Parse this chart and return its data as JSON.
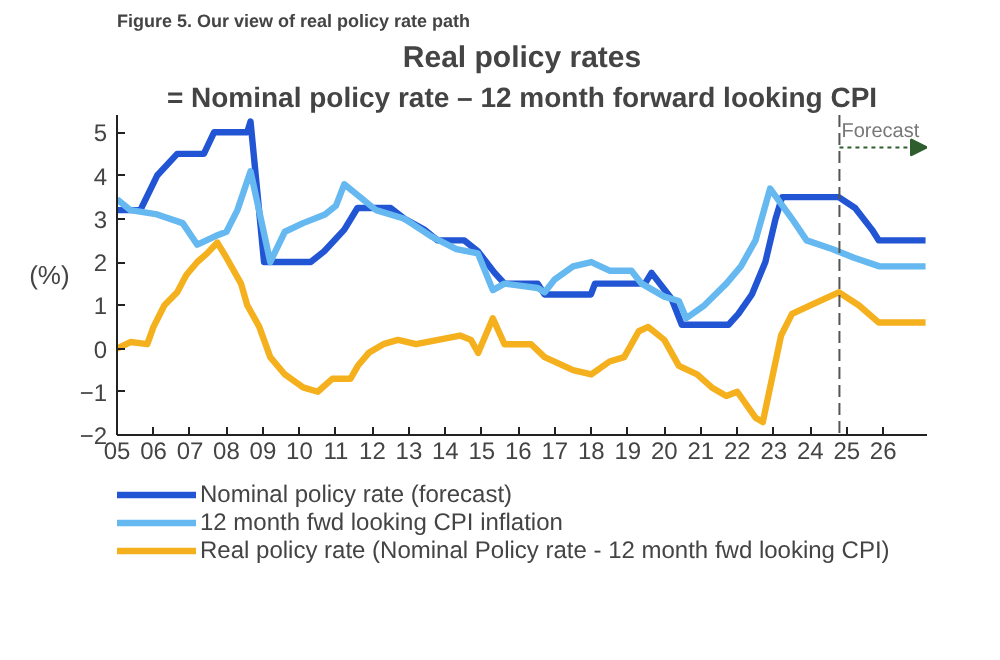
{
  "chart_data": {
    "type": "line",
    "title": "Real policy rates",
    "subtitle": "= Nominal policy rate – 12 month forward looking CPI",
    "ylabel": "(%)",
    "annotations": [
      "Figure 5. Our view of real policy rate path"
    ],
    "xlim": [
      2005,
      2027.2
    ],
    "ylim": [
      -2,
      5.4
    ],
    "xticks": [
      {
        "value": 2005,
        "label": "05"
      },
      {
        "value": 2006,
        "label": "06"
      },
      {
        "value": 2007,
        "label": "07"
      },
      {
        "value": 2008,
        "label": "08"
      },
      {
        "value": 2009,
        "label": "09"
      },
      {
        "value": 2010,
        "label": "10"
      },
      {
        "value": 2011,
        "label": "11"
      },
      {
        "value": 2012,
        "label": "12"
      },
      {
        "value": 2013,
        "label": "13"
      },
      {
        "value": 2014,
        "label": "14"
      },
      {
        "value": 2015,
        "label": "15"
      },
      {
        "value": 2016,
        "label": "16"
      },
      {
        "value": 2017,
        "label": "17"
      },
      {
        "value": 2018,
        "label": "18"
      },
      {
        "value": 2019,
        "label": "19"
      },
      {
        "value": 2020,
        "label": "20"
      },
      {
        "value": 2021,
        "label": "21"
      },
      {
        "value": 2022,
        "label": "22"
      },
      {
        "value": 2023,
        "label": "23"
      },
      {
        "value": 2024,
        "label": "24"
      },
      {
        "value": 2025,
        "label": "25"
      },
      {
        "value": 2026,
        "label": "26"
      }
    ],
    "yticks": [
      -2,
      -1,
      0,
      1,
      2,
      3,
      4,
      5
    ],
    "grid": false,
    "legend": "bottom",
    "marker": "none",
    "line_style": "solid",
    "ref_lines": [
      {
        "axis": "x",
        "value": 2024.8,
        "label": "Forecast",
        "color": "#555555",
        "line_style": "dashed"
      }
    ],
    "series": [
      {
        "name": "Nominal policy rate (forecast)",
        "color": "#2255d4",
        "x": [
          2005.0,
          2005.64,
          2006.1,
          2006.65,
          2007.38,
          2007.66,
          2008.57,
          2008.66,
          2009.03,
          2010.31,
          2010.68,
          2011.23,
          2011.59,
          2012.5,
          2012.88,
          2013.42,
          2013.79,
          2014.52,
          2014.89,
          2015.35,
          2015.62,
          2016.53,
          2016.72,
          2017.99,
          2018.1,
          2019.47,
          2019.65,
          2020.2,
          2020.48,
          2021.76,
          2022.03,
          2022.4,
          2022.77,
          2023.05,
          2023.23,
          2024.78,
          2025.23,
          2025.69,
          2025.88,
          2027.16
        ],
        "values": [
          3.2,
          3.2,
          4.0,
          4.5,
          4.5,
          5.0,
          5.0,
          5.25,
          2.0,
          2.0,
          2.25,
          2.75,
          3.25,
          3.25,
          3.0,
          2.75,
          2.5,
          2.5,
          2.25,
          1.75,
          1.5,
          1.5,
          1.25,
          1.25,
          1.5,
          1.5,
          1.75,
          1.15,
          0.55,
          0.55,
          0.8,
          1.25,
          2.0,
          3.0,
          3.5,
          3.5,
          3.25,
          2.75,
          2.5,
          2.5
        ]
      },
      {
        "name": "12 month fwd looking CPI inflation",
        "color": "#66b8f0",
        "x": [
          2005.0,
          2005.37,
          2006.1,
          2006.8,
          2007.2,
          2007.7,
          2008.0,
          2008.3,
          2008.66,
          2009.2,
          2009.6,
          2010.1,
          2010.7,
          2011.0,
          2011.23,
          2012.1,
          2012.88,
          2013.6,
          2014.3,
          2014.89,
          2015.3,
          2015.62,
          2016.53,
          2016.72,
          2017.0,
          2017.5,
          2018.0,
          2018.5,
          2019.1,
          2019.38,
          2020.0,
          2020.4,
          2020.6,
          2021.1,
          2021.7,
          2022.1,
          2022.5,
          2022.9,
          2023.5,
          2023.9,
          2024.6,
          2025.2,
          2025.9,
          2027.16
        ],
        "values": [
          3.45,
          3.2,
          3.1,
          2.9,
          2.4,
          2.6,
          2.7,
          3.2,
          4.1,
          2.0,
          2.7,
          2.9,
          3.1,
          3.3,
          3.8,
          3.2,
          3.0,
          2.6,
          2.3,
          2.2,
          1.35,
          1.5,
          1.4,
          1.3,
          1.6,
          1.9,
          2.0,
          1.8,
          1.8,
          1.5,
          1.2,
          1.1,
          0.7,
          1.0,
          1.5,
          1.9,
          2.5,
          3.7,
          3.0,
          2.5,
          2.3,
          2.1,
          1.9,
          1.9
        ]
      },
      {
        "name": "Real policy rate (Nominal Policy rate - 12 month fwd looking CPI)",
        "color": "#f5b01e",
        "x": [
          2005.0,
          2005.37,
          2005.83,
          2006.0,
          2006.3,
          2006.65,
          2006.9,
          2007.2,
          2007.47,
          2007.75,
          2008.0,
          2008.4,
          2008.57,
          2008.9,
          2009.2,
          2009.6,
          2010.1,
          2010.5,
          2010.9,
          2011.4,
          2011.6,
          2011.9,
          2012.3,
          2012.7,
          2013.2,
          2013.8,
          2014.4,
          2014.7,
          2014.9,
          2015.3,
          2015.62,
          2016.35,
          2016.72,
          2017.5,
          2018.0,
          2018.5,
          2018.9,
          2019.3,
          2019.56,
          2020.0,
          2020.4,
          2020.9,
          2021.3,
          2021.7,
          2022.0,
          2022.5,
          2022.7,
          2023.0,
          2023.2,
          2023.5,
          2024.0,
          2024.78,
          2025.33,
          2025.88,
          2027.16
        ],
        "values": [
          0.0,
          0.15,
          0.1,
          0.5,
          1.0,
          1.3,
          1.7,
          2.0,
          2.2,
          2.45,
          2.1,
          1.5,
          1.0,
          0.5,
          -0.2,
          -0.6,
          -0.9,
          -1.0,
          -0.7,
          -0.7,
          -0.4,
          -0.1,
          0.1,
          0.2,
          0.1,
          0.2,
          0.3,
          0.2,
          -0.1,
          0.7,
          0.1,
          0.1,
          -0.2,
          -0.5,
          -0.6,
          -0.3,
          -0.2,
          0.4,
          0.5,
          0.2,
          -0.4,
          -0.6,
          -0.9,
          -1.1,
          -1.0,
          -1.6,
          -1.7,
          -0.5,
          0.3,
          0.8,
          1.0,
          1.3,
          1.0,
          0.6,
          0.6
        ]
      }
    ]
  }
}
